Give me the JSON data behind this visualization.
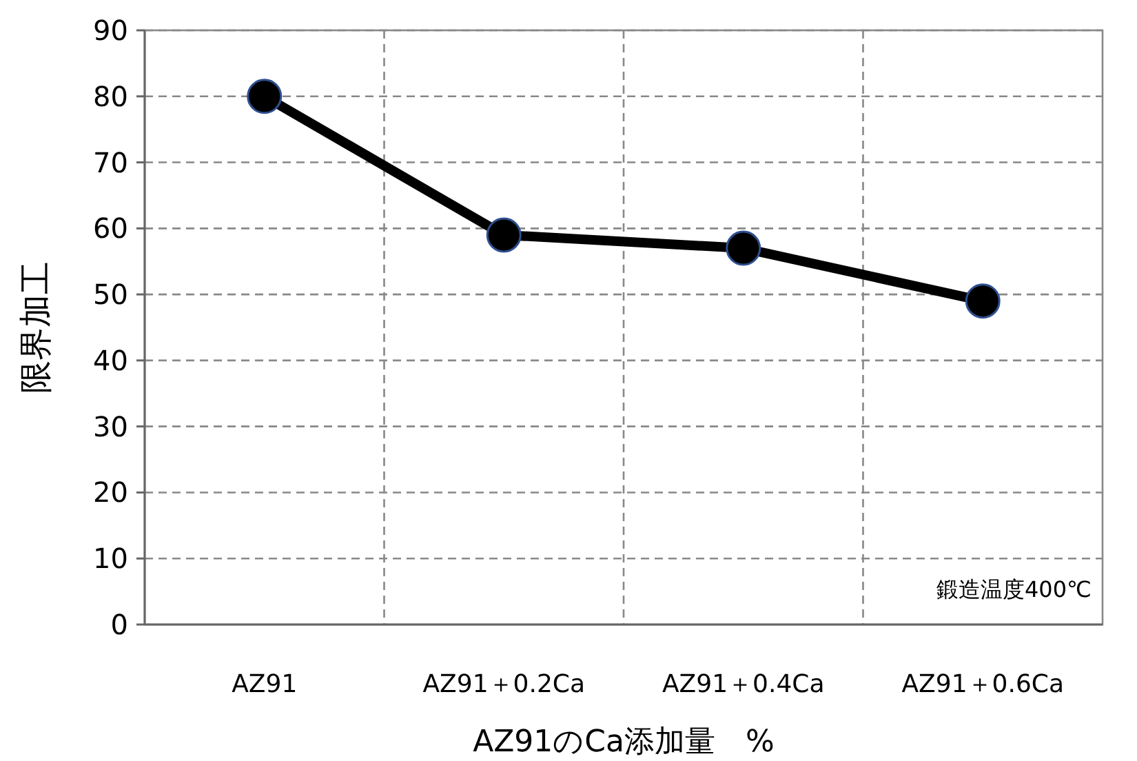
{
  "chart_data": {
    "type": "line",
    "xlabel": "AZ91のCa添加量　%",
    "ylabel": "限界加工",
    "categories": [
      "AZ91",
      "AZ91＋0.2Ca",
      "AZ91＋0.4Ca",
      "AZ91＋0.6Ca"
    ],
    "series": [
      {
        "color": "#000000",
        "values": [
          80,
          59,
          57,
          49
        ]
      }
    ],
    "ylim": [
      0,
      90
    ],
    "yticks": [
      0,
      10,
      20,
      30,
      40,
      50,
      60,
      70,
      80,
      90
    ],
    "grid": true,
    "marker": "circle",
    "line_style": "solid",
    "annotations": [
      "鍛造温度400℃"
    ]
  }
}
